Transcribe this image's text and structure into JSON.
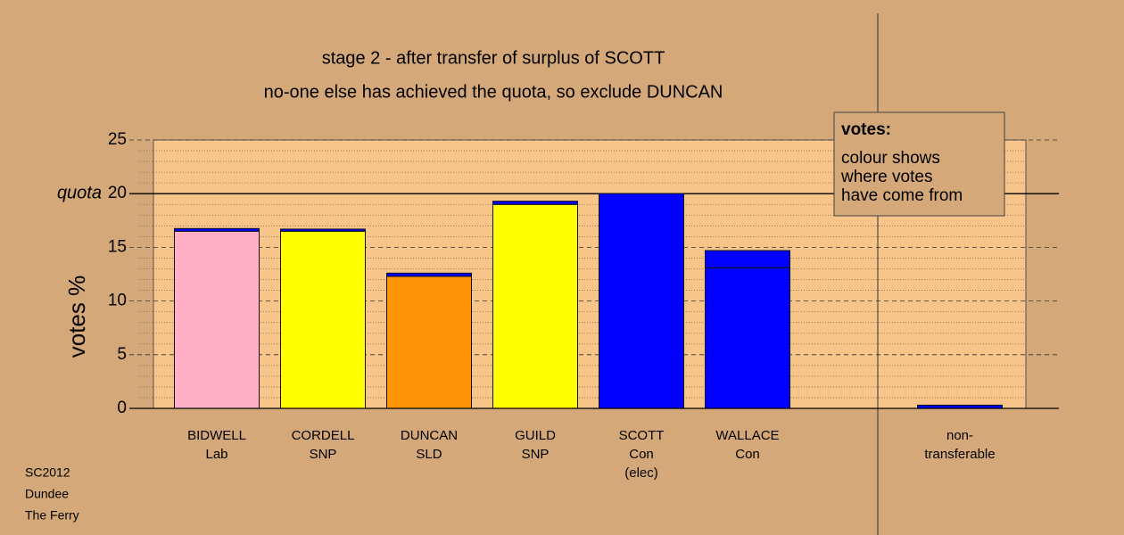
{
  "chart_data": {
    "type": "stacked_bar",
    "title": "stage 2 - after transfer of surplus of SCOTT",
    "subtitle": "no-one else has achieved the quota, so exclude DUNCAN",
    "y_label": "votes %",
    "categories": [
      [
        "BIDWELL",
        "Lab"
      ],
      [
        "CORDELL",
        "SNP"
      ],
      [
        "DUNCAN",
        "SLD"
      ],
      [
        "GUILD",
        "SNP"
      ],
      [
        "SCOTT",
        "Con",
        "(elec)"
      ],
      [
        "WALLACE",
        "Con"
      ],
      null,
      [
        "non-",
        "transferable"
      ]
    ],
    "series": [
      {
        "colors": [
          "#ffb0c8",
          "#ffff00",
          "#ff9408",
          "#ffff00",
          "#0000ff",
          "#0000ff",
          null,
          "#0000ff"
        ],
        "values": [
          16.5,
          16.5,
          12.3,
          19.0,
          20.0,
          13.1,
          null,
          0
        ]
      },
      {
        "color": "#0000ff",
        "values": [
          0.25,
          0.2,
          0.3,
          0.3,
          0,
          1.6,
          null,
          0.3
        ]
      }
    ],
    "ylim": [
      0,
      25
    ],
    "yticks": [
      0,
      5,
      10,
      15,
      20,
      25
    ],
    "minor_yticks": [
      1,
      2,
      3,
      4,
      6,
      7,
      8,
      9,
      11,
      12,
      13,
      14,
      16,
      17,
      18,
      19,
      21,
      22,
      23,
      24
    ],
    "quota": {
      "value": 20,
      "label": "quota"
    },
    "legend": {
      "title": "votes:",
      "lines": [
        "colour shows",
        "where votes",
        "have come from"
      ]
    },
    "footer": [
      "SC2012",
      "Dundee",
      "The Ferry"
    ]
  }
}
